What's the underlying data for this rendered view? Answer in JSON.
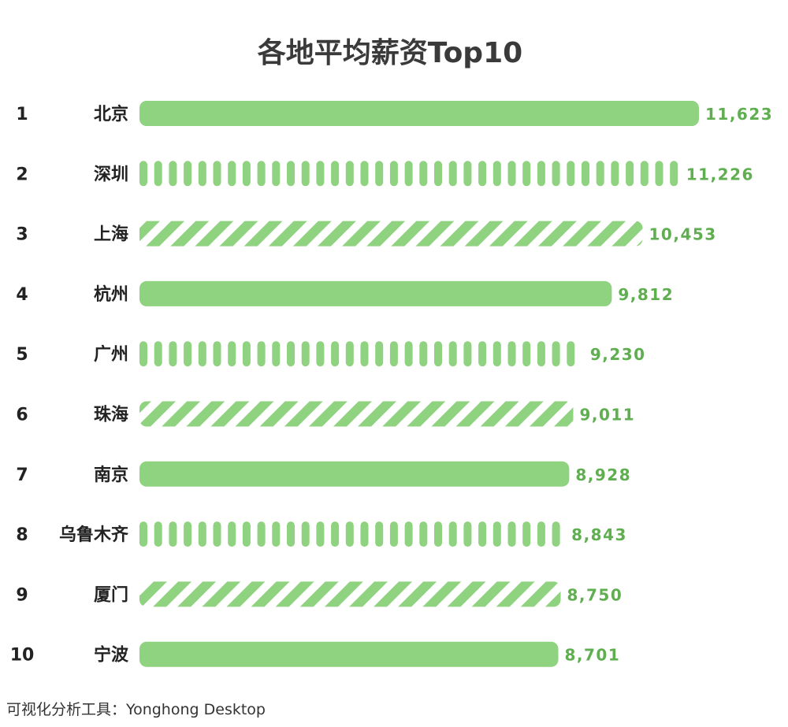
{
  "chart_data": {
    "type": "bar",
    "orientation": "horizontal",
    "title": "各地平均薪资Top10",
    "ranks": [
      "1",
      "2",
      "3",
      "4",
      "5",
      "6",
      "7",
      "8",
      "9",
      "10"
    ],
    "categories": [
      "北京",
      "深圳",
      "上海",
      "杭州",
      "广州",
      "珠海",
      "南京",
      "乌鲁木齐",
      "厦门",
      "宁波"
    ],
    "values": [
      11623,
      11226,
      10453,
      9812,
      9230,
      9011,
      8928,
      8843,
      8750,
      8701
    ],
    "value_labels": [
      "11,623",
      "11,226",
      "10,453",
      "9,812",
      "9,230",
      "9,011",
      "8,928",
      "8,843",
      "8,750",
      "8,701"
    ],
    "bar_patterns": [
      "solid",
      "pills",
      "stripes",
      "solid",
      "pills",
      "stripes",
      "solid",
      "pills",
      "stripes",
      "solid"
    ],
    "xlim": [
      0,
      11623
    ],
    "grid": false,
    "legend": "none"
  },
  "colors": {
    "bar": "#8fd27f",
    "value_label": "#5fae4f",
    "text": "#222222",
    "title": "#3a3a3a"
  },
  "footer": {
    "label": "可视化分析工具：Yonghong Desktop"
  }
}
